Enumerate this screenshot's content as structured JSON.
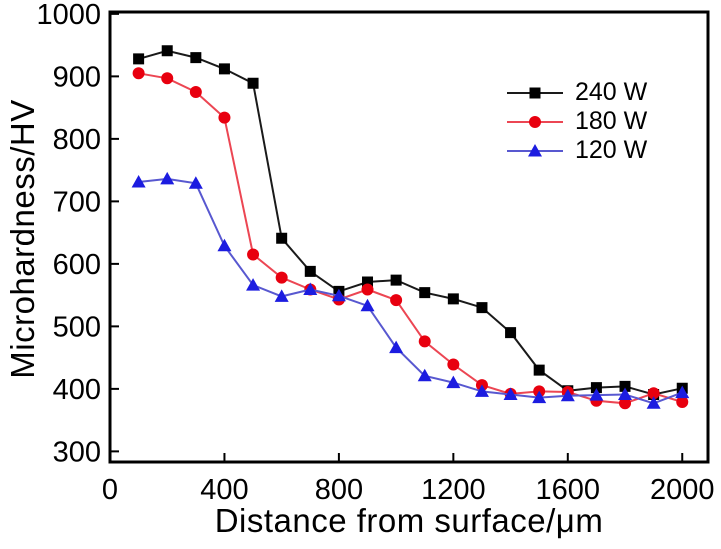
{
  "figure": {
    "background": "#ffffff",
    "frame_color": "#000000",
    "tick_color": "#000000"
  },
  "chart_data": {
    "type": "line",
    "title": "",
    "xlabel": "Distance from surface/μm",
    "ylabel": "Microhardness/HV",
    "xlim": [
      0,
      2090
    ],
    "ylim": [
      283,
      1003
    ],
    "xticks": [
      0,
      400,
      800,
      1200,
      1600,
      2000
    ],
    "yticks": [
      300,
      400,
      500,
      600,
      700,
      800,
      900,
      1000
    ],
    "grid": false,
    "legend_position": "inside-upper-right",
    "x": [
      100,
      200,
      300,
      400,
      500,
      600,
      700,
      800,
      900,
      1000,
      1100,
      1200,
      1300,
      1400,
      1500,
      1600,
      1700,
      1800,
      1900,
      2000
    ],
    "series": [
      {
        "name": "240 W",
        "marker": "square",
        "color": "#000000",
        "line_color": "#1a1a1a",
        "values": [
          928,
          941,
          930,
          912,
          889,
          641,
          588,
          556,
          571,
          574,
          554,
          544,
          530,
          490,
          430,
          397,
          402,
          404,
          391,
          401
        ]
      },
      {
        "name": "180 W",
        "marker": "circle",
        "color": "#e8000f",
        "line_color": "#ec4653",
        "values": [
          905,
          897,
          875,
          834,
          615,
          578,
          559,
          543,
          559,
          542,
          476,
          439,
          406,
          392,
          396,
          395,
          381,
          377,
          393,
          379
        ]
      },
      {
        "name": "120 W",
        "marker": "triangle",
        "color": "#1c1ce0",
        "line_color": "#5858d0",
        "values": [
          731,
          736,
          729,
          629,
          566,
          548,
          559,
          549,
          533,
          466,
          421,
          410,
          396,
          391,
          386,
          389,
          390,
          391,
          377,
          394
        ]
      }
    ]
  }
}
